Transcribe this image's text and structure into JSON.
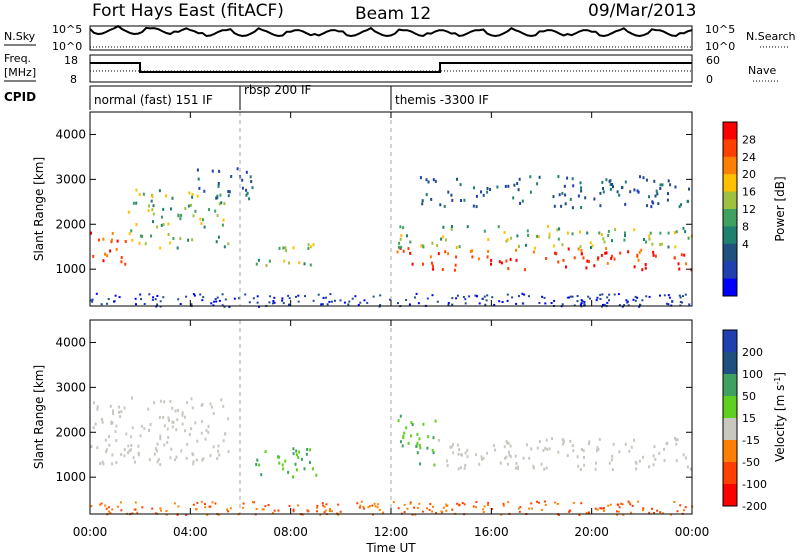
{
  "header": {
    "radar": "Fort Hays East (fitACF)",
    "beam": "Beam 12",
    "date": "09/Mar/2013"
  },
  "panels": {
    "nsky": {
      "left_label": "N.Sky",
      "left_ticks": [
        "10^5",
        "10^0"
      ],
      "right_ticks": [
        "10^5",
        "10^0"
      ],
      "right_label": "N.Search"
    },
    "freq": {
      "left_label_1": "Freq.",
      "left_label_2": "[MHz]",
      "left_ticks": [
        "18",
        "8"
      ],
      "right_ticks": [
        "60",
        "0"
      ],
      "right_label": "Nave"
    },
    "cpid": {
      "label": "CPID",
      "modes": [
        {
          "label": "normal (fast) 151 IF",
          "start_hour": 0
        },
        {
          "label": "rbsp 200 IF",
          "start_hour": 6
        },
        {
          "label": "themis -3300 IF",
          "start_hour": 12
        }
      ]
    }
  },
  "power_colorbar": {
    "label": "Power [dB]",
    "ticks": [
      "28",
      "24",
      "20",
      "16",
      "12",
      "8",
      "4"
    ],
    "colors": [
      "#ff0000",
      "#ff4000",
      "#ff8000",
      "#ffc000",
      "#a0c040",
      "#40a060",
      "#208070",
      "#205080",
      "#2040b0",
      "#0000ff"
    ]
  },
  "velocity_colorbar": {
    "label": "Velocity [m s",
    "label_sup": "-1",
    "label_end": "]",
    "ticks": [
      "200",
      "100",
      "50",
      "15",
      "-15",
      "-50",
      "-100",
      "-200"
    ],
    "colors": [
      "#2040b0",
      "#205080",
      "#40a060",
      "#60d020",
      "#c8c8c0",
      "#ff8000",
      "#ff4000",
      "#ff0000"
    ]
  },
  "chart_data": [
    {
      "type": "heatmap",
      "name_in_image": "",
      "quantity": "Power",
      "ylabel": "Slant Range [km]",
      "xlabel": "Time UT",
      "xlim_hours": [
        0,
        24
      ],
      "ylim_km": [
        180,
        4500
      ],
      "yticks": [
        1000,
        2000,
        3000,
        4000
      ],
      "xticks": [
        "00:00",
        "04:00",
        "08:00",
        "12:00",
        "16:00",
        "20:00",
        "00:00"
      ],
      "features": [
        {
          "t0": 0.0,
          "t1": 1.5,
          "r0": 1100,
          "r1": 1900,
          "level": "high"
        },
        {
          "t0": 1.5,
          "t1": 5.5,
          "r0": 1500,
          "r1": 2800,
          "level": "mid"
        },
        {
          "t0": 4.0,
          "t1": 6.5,
          "r0": 2600,
          "r1": 3300,
          "level": "low"
        },
        {
          "t0": 6.5,
          "t1": 9.0,
          "r0": 1100,
          "r1": 1600,
          "level": "mid"
        },
        {
          "t0": 12.2,
          "t1": 24.0,
          "r0": 1000,
          "r1": 1500,
          "level": "high"
        },
        {
          "t0": 12.2,
          "t1": 24.0,
          "r0": 1500,
          "r1": 2000,
          "level": "mid"
        },
        {
          "t0": 13.0,
          "t1": 24.0,
          "r0": 2400,
          "r1": 3100,
          "level": "low"
        }
      ]
    },
    {
      "type": "heatmap",
      "quantity": "Velocity",
      "ylabel": "Slant Range [km]",
      "xlabel": "Time UT",
      "xlim_hours": [
        0,
        24
      ],
      "ylim_km": [
        180,
        4500
      ],
      "yticks": [
        1000,
        2000,
        3000,
        4000
      ],
      "xticks": [
        "00:00",
        "04:00",
        "08:00",
        "12:00",
        "16:00",
        "20:00",
        "00:00"
      ],
      "features": [
        {
          "t0": 0.0,
          "t1": 5.5,
          "r0": 1300,
          "r1": 2800,
          "velocity": "ground"
        },
        {
          "t0": 6.5,
          "t1": 9.0,
          "r0": 1000,
          "r1": 1700,
          "velocity": "positive"
        },
        {
          "t0": 12.2,
          "t1": 13.8,
          "r0": 1300,
          "r1": 2400,
          "velocity": "positive"
        },
        {
          "t0": 13.8,
          "t1": 24.0,
          "r0": 1200,
          "r1": 1900,
          "velocity": "ground"
        }
      ]
    }
  ]
}
